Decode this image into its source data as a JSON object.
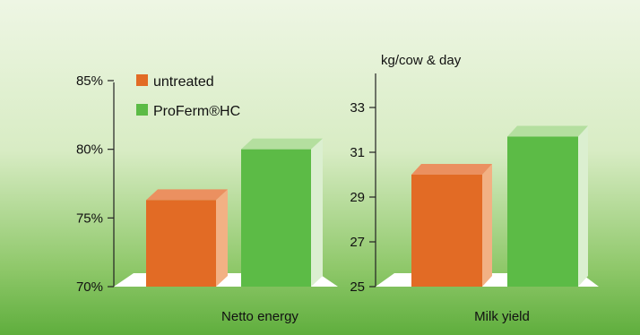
{
  "colors": {
    "untreated": "#e26b25",
    "untreated_side": "#f2b184",
    "untreated_top": "#eb9060",
    "proferm": "#5cbb46",
    "proferm_side": "#dbefd0",
    "proferm_top": "#b4df9f",
    "platform": "#ffffff",
    "axis": "#222222"
  },
  "chart_data": [
    {
      "type": "bar",
      "categories": [
        "Netto energy"
      ],
      "series": [
        {
          "name": "untreated",
          "values": [
            76.3
          ]
        },
        {
          "name": "ProFerm®HC",
          "values": [
            80
          ]
        }
      ],
      "ylim": [
        70,
        85
      ],
      "yticks": [
        "70%",
        "75%",
        "80%",
        "85%"
      ],
      "ytick_values": [
        70,
        75,
        80,
        85
      ],
      "ylabel": "",
      "legend": "top-left"
    },
    {
      "type": "bar",
      "categories": [
        "Milk yield"
      ],
      "series": [
        {
          "name": "untreated",
          "values": [
            30
          ]
        },
        {
          "name": "ProFerm®HC",
          "values": [
            31.7
          ]
        }
      ],
      "ylim": [
        25,
        35
      ],
      "yticks": [
        "25",
        "27",
        "29",
        "31",
        "33"
      ],
      "ytick_values": [
        25,
        27,
        29,
        31,
        33
      ],
      "ylabel": "kg/cow & day"
    }
  ]
}
